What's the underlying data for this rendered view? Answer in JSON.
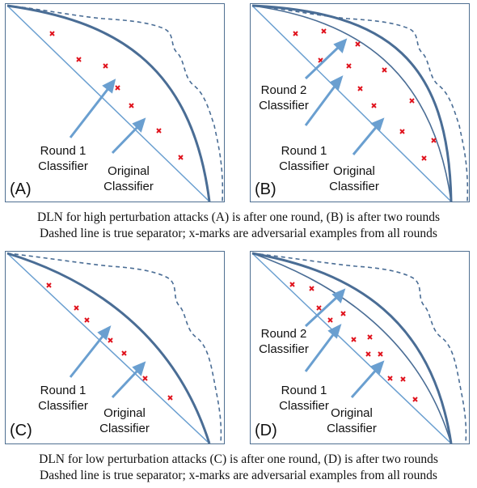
{
  "panels": {
    "A": {
      "label": "(A)",
      "round1": "Round 1\nClassifier",
      "original": "Original\nClassifier"
    },
    "B": {
      "label": "(B)",
      "round2": "Round 2\nClassifier",
      "round1": "Round 1\nClassifier",
      "original": "Original\nClassifier"
    },
    "C": {
      "label": "(C)",
      "round1": "Round 1\nClassifier",
      "original": "Original\nClassifier"
    },
    "D": {
      "label": "(D)",
      "round2": "Round 2\nClassifier",
      "round1": "Round 1\nClassifier",
      "original": "Original\nClassifier"
    }
  },
  "captions": {
    "high_line1": "DLN for high perturbation attacks (A) is after one round, (B) is after two rounds",
    "high_line2": "Dashed line is true separator; x-marks are adversarial examples from all rounds",
    "low_line1": "DLN for low perturbation attacks (C) is after one round, (D) is after two rounds",
    "low_line2": "Dashed line is true separator; x-marks are adversarial examples from all rounds"
  },
  "colors": {
    "frame": "#4f6f91",
    "curve": "#4a6d95",
    "arrow": "#6a9fd0",
    "marker": "#e0141e"
  }
}
